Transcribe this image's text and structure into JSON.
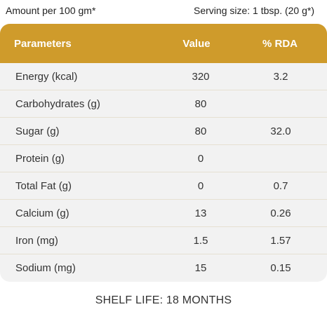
{
  "header_left": "Amount per 100 gm*",
  "header_right": "Serving size: 1 tbsp. (20 g*)",
  "table": {
    "columns": [
      "Parameters",
      "Value",
      "% RDA"
    ],
    "rows": [
      {
        "parameter": "Energy (kcal)",
        "value": "320",
        "rda": "3.2"
      },
      {
        "parameter": "Carbohydrates (g)",
        "value": "80",
        "rda": ""
      },
      {
        "parameter": "Sugar (g)",
        "value": "80",
        "rda": "32.0"
      },
      {
        "parameter": "Protein (g)",
        "value": "0",
        "rda": ""
      },
      {
        "parameter": "Total Fat (g)",
        "value": "0",
        "rda": "0.7"
      },
      {
        "parameter": "Calcium (g)",
        "value": "13",
        "rda": "0.26"
      },
      {
        "parameter": "Iron (mg)",
        "value": "1.5",
        "rda": "1.57"
      },
      {
        "parameter": "Sodium (mg)",
        "value": "15",
        "rda": "0.15"
      }
    ]
  },
  "footer": "SHELF LIFE: 18 MONTHS",
  "colors": {
    "header_bg": "#cf9b2b",
    "table_bg": "#f2f2f2"
  }
}
